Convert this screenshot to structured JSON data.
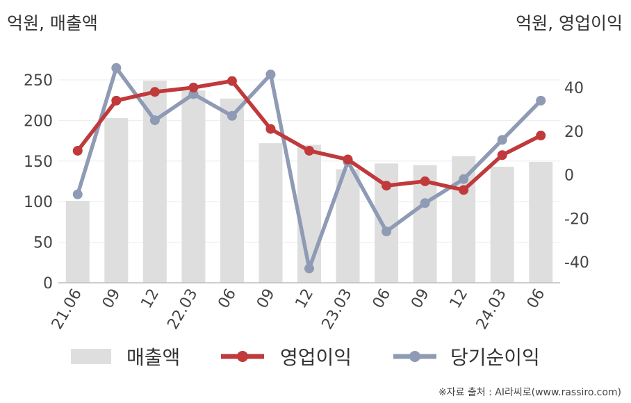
{
  "chart_data": {
    "type": "bar",
    "categories": [
      "21.06",
      "09",
      "12",
      "22.03",
      "06",
      "09",
      "12",
      "23.03",
      "06",
      "09",
      "12",
      "24.03",
      "06"
    ],
    "ylabel": "억원, 매출액",
    "y2label": "억원, 영업이익",
    "ylim": [
      0,
      250
    ],
    "y2lim": [
      -40,
      40
    ],
    "grid": true,
    "legend_position": "bottom",
    "series": [
      {
        "name": "매출액",
        "type": "bar",
        "axis": "left",
        "color": "#dedede",
        "values": [
          101,
          203,
          249,
          237,
          227,
          172,
          170,
          140,
          147,
          145,
          156,
          143,
          149
        ]
      },
      {
        "name": "영업이익",
        "type": "line",
        "axis": "right",
        "color": "#c0393b",
        "values": [
          11,
          34,
          38,
          40,
          43,
          21,
          11,
          7,
          -5,
          -3,
          -7,
          9,
          18
        ]
      },
      {
        "name": "당기순이익",
        "type": "line",
        "axis": "right",
        "color": "#8f9bb5",
        "values": [
          -9,
          49,
          25,
          37,
          27,
          46,
          -43,
          6,
          -26,
          -13,
          -2,
          16,
          34
        ]
      }
    ],
    "yticks": [
      "0",
      "50",
      "100",
      "150",
      "200",
      "250"
    ],
    "y2ticks": [
      "-40",
      "-20",
      "0",
      "20",
      "40"
    ]
  },
  "source": "※자료 출처 : AI라씨로(www.rassiro.com)"
}
